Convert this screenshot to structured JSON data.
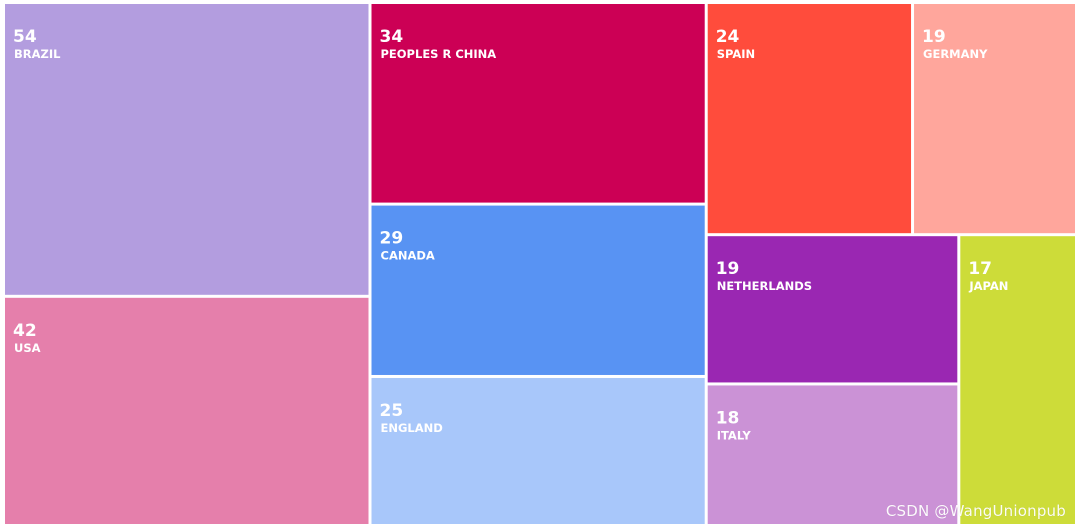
{
  "chart_data": {
    "type": "treemap",
    "items": [
      {
        "name": "BRAZIL",
        "value": 54,
        "color": "#b39ddf"
      },
      {
        "name": "USA",
        "value": 42,
        "color": "#e57fab"
      },
      {
        "name": "PEOPLES R CHINA",
        "value": 34,
        "color": "#cc0055"
      },
      {
        "name": "CANADA",
        "value": 29,
        "color": "#5893f3"
      },
      {
        "name": "ENGLAND",
        "value": 25,
        "color": "#a8c7fa"
      },
      {
        "name": "SPAIN",
        "value": 24,
        "color": "#ff4c3c"
      },
      {
        "name": "GERMANY",
        "value": 19,
        "color": "#ffa69c"
      },
      {
        "name": "NETHERLANDS",
        "value": 19,
        "color": "#9a27b2"
      },
      {
        "name": "ITALY",
        "value": 18,
        "color": "#cb92d6"
      },
      {
        "name": "JAPAN",
        "value": 17,
        "color": "#cddc39"
      }
    ]
  },
  "watermark": "CSDN @WangUnionpub"
}
